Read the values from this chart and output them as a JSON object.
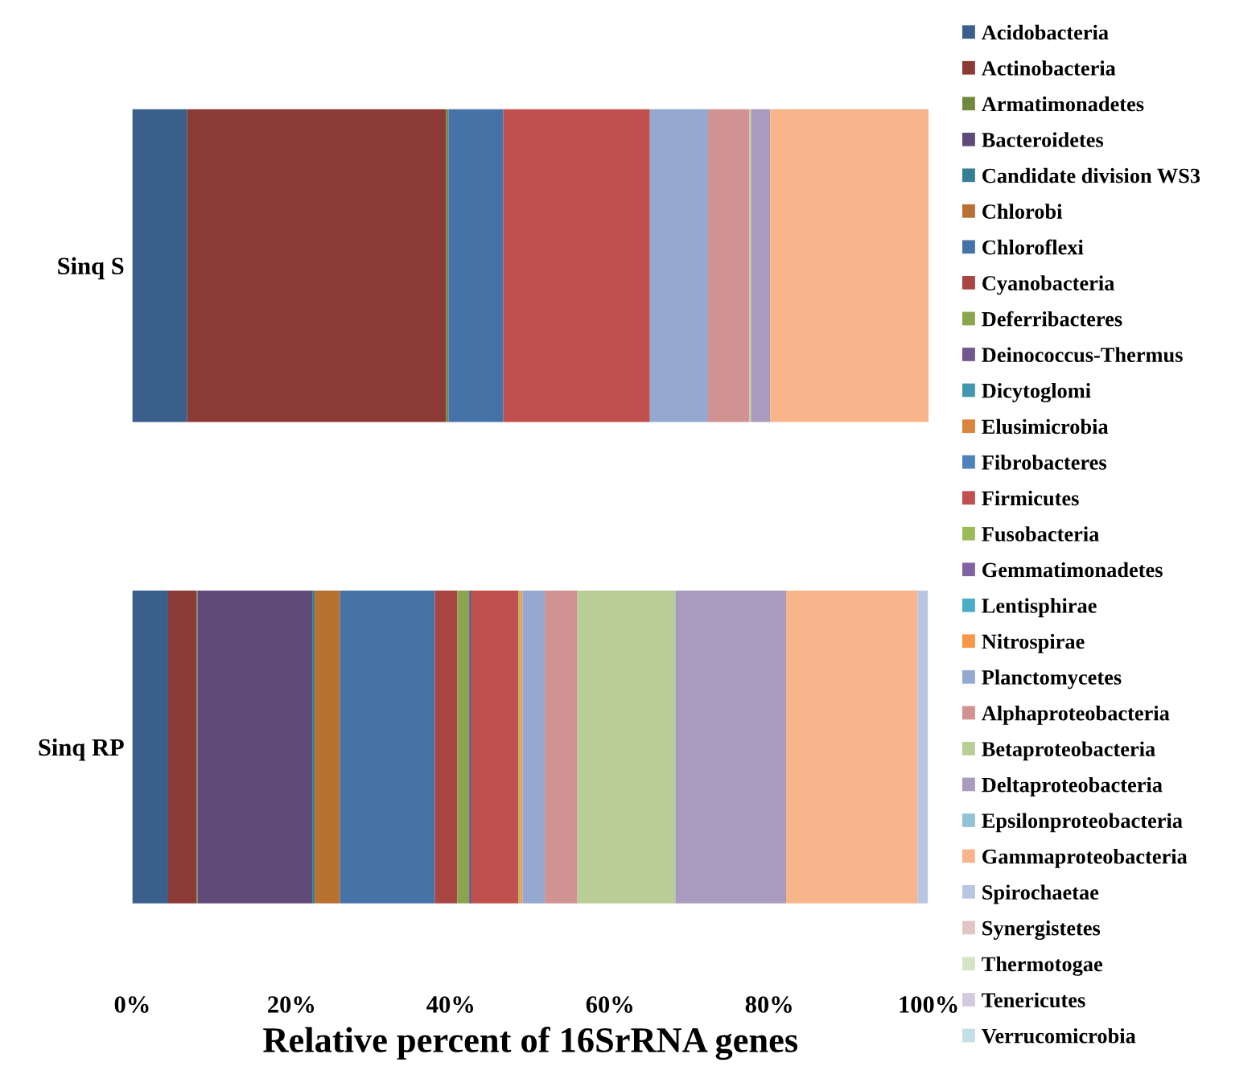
{
  "chart_data": {
    "type": "bar",
    "orientation": "horizontal",
    "stacked": true,
    "categories": [
      "Sinq S",
      "Sinq RP"
    ],
    "xlabel": "Relative percent of 16SrRNA genes",
    "xlim": [
      0,
      100
    ],
    "xticks": [
      {
        "value": 0,
        "label": "0%"
      },
      {
        "value": 20,
        "label": "20%"
      },
      {
        "value": 40,
        "label": "40%"
      },
      {
        "value": 60,
        "label": "60%"
      },
      {
        "value": 80,
        "label": "80%"
      },
      {
        "value": 100,
        "label": "100%"
      }
    ],
    "grid": false,
    "legend": "right",
    "series": [
      {
        "name": "Acidobacteria",
        "color": "#3a5f8a",
        "values": [
          6.9,
          4.5
        ]
      },
      {
        "name": "Actinobacteria",
        "color": "#8b3a36",
        "values": [
          32.5,
          3.6
        ]
      },
      {
        "name": "Armatimonadetes",
        "color": "#71893f",
        "values": [
          0.3,
          0.1
        ]
      },
      {
        "name": "Bacteroidetes",
        "color": "#5f4a78",
        "values": [
          0,
          14.4
        ]
      },
      {
        "name": "Candidate division WS3",
        "color": "#357f93",
        "values": [
          0,
          0.3
        ]
      },
      {
        "name": "Chlorobi",
        "color": "#b87033",
        "values": [
          0,
          3.2
        ]
      },
      {
        "name": "Chloroflexi",
        "color": "#4573a7",
        "values": [
          6.9,
          11.9
        ]
      },
      {
        "name": "Cyanobacteria",
        "color": "#a94643",
        "values": [
          0,
          2.8
        ]
      },
      {
        "name": "Deferribacteres",
        "color": "#89a54e",
        "values": [
          0,
          1.5
        ]
      },
      {
        "name": "Deinococcus-Thermus",
        "color": "#71588f",
        "values": [
          0,
          0.3
        ]
      },
      {
        "name": "Dicytoglomi",
        "color": "#4198af",
        "values": [
          0,
          0
        ]
      },
      {
        "name": "Elusimicrobia",
        "color": "#db843d",
        "values": [
          0,
          0
        ]
      },
      {
        "name": "Fibrobacteres",
        "color": "#4f81bd",
        "values": [
          0,
          0
        ]
      },
      {
        "name": "Firmicutes",
        "color": "#c0504d",
        "values": [
          18.4,
          5.9
        ]
      },
      {
        "name": "Fusobacteria",
        "color": "#9bbb59",
        "values": [
          0,
          0.2
        ]
      },
      {
        "name": "Gemmatimonadetes",
        "color": "#8064a2",
        "values": [
          0,
          0
        ]
      },
      {
        "name": "Lentisphirae",
        "color": "#4bacc6",
        "values": [
          0,
          0
        ]
      },
      {
        "name": "Nitrospirae",
        "color": "#f79646",
        "values": [
          0,
          0.3
        ]
      },
      {
        "name": "Planctomycetes",
        "color": "#95a9d0",
        "values": [
          7.3,
          2.8
        ]
      },
      {
        "name": "Alphaproteobacteria",
        "color": "#d19392",
        "values": [
          5.2,
          4.1
        ]
      },
      {
        "name": "Betaproteobacteria",
        "color": "#b9cd96",
        "values": [
          0.2,
          12.3
        ]
      },
      {
        "name": "Deltaproteobacteria",
        "color": "#a99bbd",
        "values": [
          2.4,
          13.9
        ]
      },
      {
        "name": "Epsilonproteobacteria",
        "color": "#92c3d5",
        "values": [
          0,
          0
        ]
      },
      {
        "name": "Gammaproteobacteria",
        "color": "#f8b58b",
        "values": [
          19.9,
          16.5
        ]
      },
      {
        "name": "Spirochaetae",
        "color": "#b9c6e0",
        "values": [
          0,
          1.3
        ]
      },
      {
        "name": "Synergistetes",
        "color": "#e2c4c4",
        "values": [
          0,
          0
        ]
      },
      {
        "name": "Thermotogae",
        "color": "#d7e3c5",
        "values": [
          0,
          0
        ]
      },
      {
        "name": "Tenericutes",
        "color": "#d2cbdd",
        "values": [
          0,
          0
        ]
      },
      {
        "name": "Verrucomicrobia",
        "color": "#c5dfe9",
        "values": [
          0,
          0
        ]
      }
    ]
  }
}
